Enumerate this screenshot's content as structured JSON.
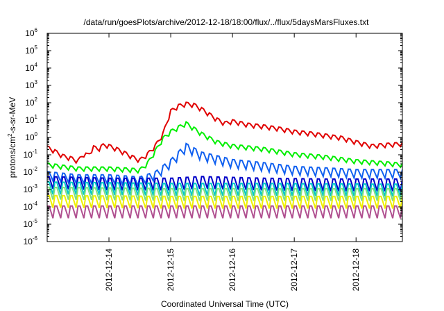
{
  "chart_data": {
    "type": "line",
    "title": "/data/run/goesPlots/archive/2012-12-18/18:00/flux/../flux/5daysMarsFluxes.txt",
    "xlabel": "Coordinated Universal Time (UTC)",
    "ylabel": {
      "base": "protons/cm",
      "sup": "2",
      "rest": "-s-sr-MeV"
    },
    "y_scale": "log",
    "ylim": [
      1e-06,
      1000000.0
    ],
    "xlim": [
      "2012-12-13T00:00",
      "2012-12-18T18:00"
    ],
    "grid": false,
    "legend": "none",
    "x_ticks": [
      "2012-12-14",
      "2012-12-15",
      "2012-12-16",
      "2012-12-17",
      "2012-12-18"
    ],
    "y_ticks": [
      {
        "exp": "-6",
        "value": 1e-06
      },
      {
        "exp": "-5",
        "value": 1e-05
      },
      {
        "exp": "-4",
        "value": 0.0001
      },
      {
        "exp": "-3",
        "value": 0.001
      },
      {
        "exp": "-2",
        "value": 0.01
      },
      {
        "exp": "-1",
        "value": 0.1
      },
      {
        "exp": "0",
        "value": 1
      },
      {
        "exp": "1",
        "value": 10
      },
      {
        "exp": "2",
        "value": 100
      },
      {
        "exp": "3",
        "value": 1000
      },
      {
        "exp": "4",
        "value": 10000
      },
      {
        "exp": "5",
        "value": 100000
      },
      {
        "exp": "6",
        "value": 1000000
      }
    ],
    "tick_base": "10",
    "series": [
      {
        "color": "#e00000",
        "points": [
          [
            "2012-12-13T00:00",
            0.25
          ],
          [
            "2012-12-13T03:00",
            0.15
          ],
          [
            "2012-12-13T06:00",
            0.08
          ],
          [
            "2012-12-13T09:00",
            0.06
          ],
          [
            "2012-12-13T12:00",
            0.04
          ],
          [
            "2012-12-13T14:00",
            0.1
          ],
          [
            "2012-12-13T16:00",
            0.09
          ],
          [
            "2012-12-13T18:00",
            0.25
          ],
          [
            "2012-12-13T20:00",
            0.2
          ],
          [
            "2012-12-13T22:00",
            0.35
          ],
          [
            "2012-12-14T00:00",
            0.3
          ],
          [
            "2012-12-14T03:00",
            0.2
          ],
          [
            "2012-12-14T06:00",
            0.12
          ],
          [
            "2012-12-14T09:00",
            0.07
          ],
          [
            "2012-12-14T12:00",
            0.045
          ],
          [
            "2012-12-14T15:00",
            0.1
          ],
          [
            "2012-12-14T18:00",
            0.3
          ],
          [
            "2012-12-14T21:00",
            1.5
          ],
          [
            "2012-12-15T00:00",
            30
          ],
          [
            "2012-12-15T03:00",
            60
          ],
          [
            "2012-12-15T06:00",
            80
          ],
          [
            "2012-12-15T09:00",
            70
          ],
          [
            "2012-12-15T12:00",
            40
          ],
          [
            "2012-12-15T15:00",
            20
          ],
          [
            "2012-12-15T18:00",
            10
          ],
          [
            "2012-12-15T21:00",
            6
          ],
          [
            "2012-12-16T00:00",
            8
          ],
          [
            "2012-12-16T06:00",
            5
          ],
          [
            "2012-12-16T12:00",
            4
          ],
          [
            "2012-12-16T18:00",
            3
          ],
          [
            "2012-12-17T00:00",
            2
          ],
          [
            "2012-12-17T06:00",
            1.6
          ],
          [
            "2012-12-17T12:00",
            1.2
          ],
          [
            "2012-12-17T18:00",
            0.9
          ],
          [
            "2012-12-18T00:00",
            0.5
          ],
          [
            "2012-12-18T06:00",
            0.3
          ],
          [
            "2012-12-18T12:00",
            0.35
          ],
          [
            "2012-12-18T18:00",
            0.4
          ]
        ]
      },
      {
        "color": "#00ee00",
        "points": [
          [
            "2012-12-13T00:00",
            0.025
          ],
          [
            "2012-12-13T12:00",
            0.015
          ],
          [
            "2012-12-14T00:00",
            0.015
          ],
          [
            "2012-12-14T12:00",
            0.012
          ],
          [
            "2012-12-14T15:00",
            0.03
          ],
          [
            "2012-12-14T18:00",
            0.15
          ],
          [
            "2012-12-14T21:00",
            0.8
          ],
          [
            "2012-12-15T00:00",
            2
          ],
          [
            "2012-12-15T06:00",
            6
          ],
          [
            "2012-12-15T12:00",
            1.5
          ],
          [
            "2012-12-15T18:00",
            0.5
          ],
          [
            "2012-12-16T00:00",
            0.3
          ],
          [
            "2012-12-16T12:00",
            0.2
          ],
          [
            "2012-12-17T00:00",
            0.1
          ],
          [
            "2012-12-17T12:00",
            0.07
          ],
          [
            "2012-12-18T00:00",
            0.04
          ],
          [
            "2012-12-18T12:00",
            0.03
          ],
          [
            "2012-12-18T18:00",
            0.025
          ]
        ]
      },
      {
        "color": "#1060f0",
        "points": [
          [
            "2012-12-13T00:00",
            0.006
          ],
          [
            "2012-12-13T12:00",
            0.004
          ],
          [
            "2012-12-14T00:00",
            0.004
          ],
          [
            "2012-12-14T12:00",
            0.003
          ],
          [
            "2012-12-14T18:00",
            0.006
          ],
          [
            "2012-12-15T00:00",
            0.03
          ],
          [
            "2012-12-15T06:00",
            0.25
          ],
          [
            "2012-12-15T12:00",
            0.08
          ],
          [
            "2012-12-15T18:00",
            0.05
          ],
          [
            "2012-12-16T00:00",
            0.03
          ],
          [
            "2012-12-16T12:00",
            0.02
          ],
          [
            "2012-12-17T00:00",
            0.012
          ],
          [
            "2012-12-17T12:00",
            0.01
          ],
          [
            "2012-12-18T00:00",
            0.008
          ],
          [
            "2012-12-18T18:00",
            0.008
          ]
        ]
      },
      {
        "color": "#0000c8",
        "points": [
          [
            "2012-12-13T00:00",
            0.0025
          ],
          [
            "2012-12-14T00:00",
            0.002
          ],
          [
            "2012-12-15T00:00",
            0.002
          ],
          [
            "2012-12-15T12:00",
            0.0025
          ],
          [
            "2012-12-16T12:00",
            0.002
          ],
          [
            "2012-12-17T12:00",
            0.0018
          ],
          [
            "2012-12-18T18:00",
            0.0018
          ]
        ]
      },
      {
        "color": "#00c8c8",
        "points": [
          [
            "2012-12-13T00:00",
            0.0012
          ],
          [
            "2012-12-15T00:00",
            0.001
          ],
          [
            "2012-12-16T12:00",
            0.001
          ],
          [
            "2012-12-18T18:00",
            0.0009
          ]
        ]
      },
      {
        "color": "#80e080",
        "points": [
          [
            "2012-12-13T00:00",
            0.0006
          ],
          [
            "2012-12-15T00:00",
            0.0005
          ],
          [
            "2012-12-18T18:00",
            0.0005
          ]
        ]
      },
      {
        "color": "#f0f000",
        "points": [
          [
            "2012-12-13T00:00",
            0.0002
          ],
          [
            "2012-12-15T00:00",
            0.00018
          ],
          [
            "2012-12-18T18:00",
            0.00018
          ]
        ]
      },
      {
        "color": "#b05090",
        "points": [
          [
            "2012-12-13T00:00",
            5e-05
          ],
          [
            "2012-12-15T00:00",
            5e-05
          ],
          [
            "2012-12-18T18:00",
            5e-05
          ]
        ]
      }
    ]
  }
}
